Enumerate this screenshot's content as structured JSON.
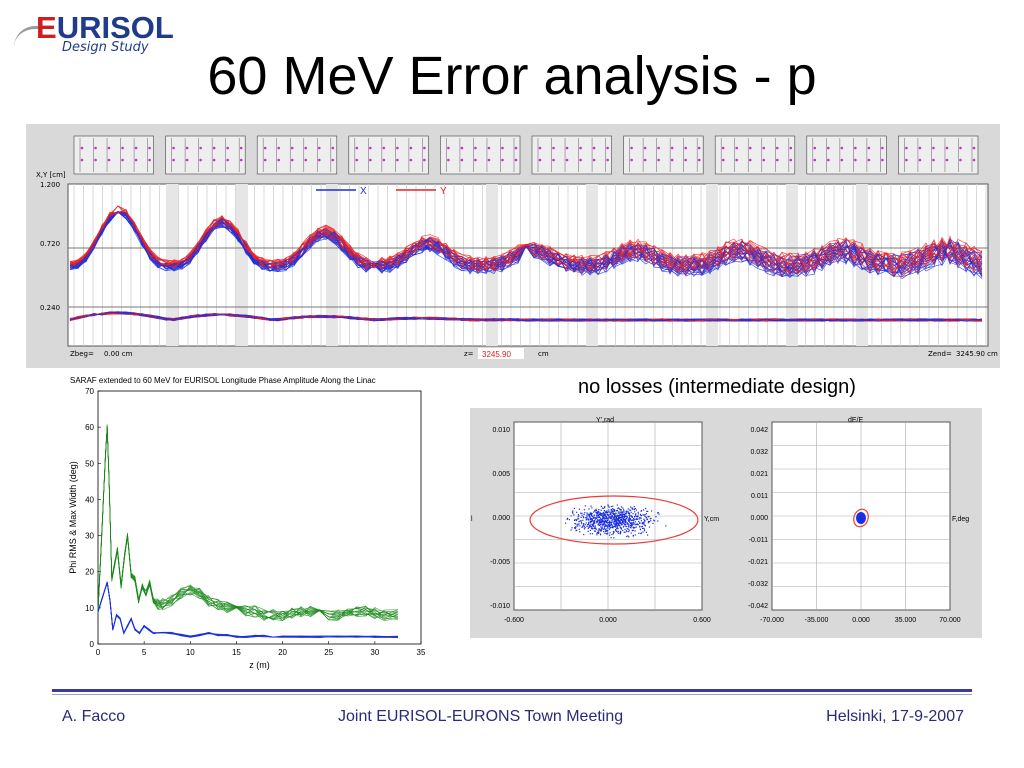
{
  "slide": {
    "logo_word": "EURISOL",
    "logo_first": "E",
    "logo_rest": "URISOL",
    "logo_sub": "Design Study",
    "title": "60 MeV Error analysis - p"
  },
  "top_panel": {
    "y_axis_label": "X,Y [cm]",
    "y_ticks": [
      "1.200",
      "0.720",
      "0.240"
    ],
    "legend_x": "X",
    "legend_y": "Y",
    "zbeg_label": "Zbeg=",
    "zbeg_value": "0.00 cm",
    "z_label": "z=",
    "z_value": "3245.90",
    "z_unit": "cm",
    "zend_label": "Zend=",
    "zend_value": "3245.90 cm",
    "colors": {
      "x": "#1a2fe0",
      "y": "#ee2020"
    }
  },
  "right_caption": "no losses (intermediate design)",
  "bottom_panel": {
    "left_plot": {
      "title": "Y',rad",
      "axis_right": "Y,cm",
      "axis_left_marker": "l",
      "y_ticks": [
        "0.010",
        "0.005",
        "0.000",
        "-0.005",
        "-0.010"
      ],
      "x_ticks": [
        "-0.600",
        "0.000",
        "0.600"
      ]
    },
    "right_plot": {
      "title": "dE/E",
      "axis_right": "F,deg",
      "y_ticks": [
        "0.042",
        "0.032",
        "0.021",
        "0.011",
        "0.000",
        "-0.011",
        "-0.021",
        "-0.032",
        "-0.042"
      ],
      "x_ticks": [
        "-70.000",
        "-35.000",
        "0.000",
        "35.000",
        "70.000"
      ]
    }
  },
  "chart_data": {
    "type": "line",
    "title": "SARAF  extended to 60 MeV for EURISOL Longitude Phase Amplitude Along the Linac",
    "xlabel": "z (m)",
    "ylabel": "Phi RMS & Max Width (deg)",
    "xlim": [
      0,
      35
    ],
    "ylim": [
      0,
      70
    ],
    "x_ticks": [
      0,
      5,
      10,
      15,
      20,
      25,
      30,
      35
    ],
    "y_ticks": [
      0,
      10,
      20,
      30,
      40,
      50,
      60,
      70
    ],
    "grid": false,
    "series": [
      {
        "color": "#1a8a1a",
        "x": [
          0,
          0.4,
          0.8,
          1.0,
          1.2,
          1.5,
          1.8,
          2.1,
          2.5,
          2.9,
          3.2,
          3.6,
          4.0,
          4.4,
          4.8,
          5.2,
          5.6,
          6.0,
          6.5,
          7,
          8,
          9,
          10,
          11,
          12,
          13,
          14,
          15,
          16,
          17,
          18,
          19,
          20,
          21,
          22,
          23,
          24,
          25,
          26,
          27,
          28,
          29,
          30,
          31,
          32.5
        ],
        "y": [
          9,
          30,
          52,
          60,
          45,
          18,
          22,
          26,
          16,
          25,
          30,
          19,
          18,
          12,
          16,
          14,
          17,
          12,
          11,
          11,
          12,
          14,
          15,
          14,
          12,
          11,
          10,
          10,
          9,
          9,
          8,
          8,
          8,
          8.5,
          9,
          9,
          8.5,
          8,
          8,
          8.5,
          9,
          9,
          8.5,
          8,
          8
        ]
      },
      {
        "color": "#1a2fe0",
        "x": [
          0,
          0.5,
          1.0,
          1.3,
          1.6,
          2.0,
          2.4,
          2.8,
          3.2,
          3.6,
          4.0,
          4.5,
          5.0,
          5.5,
          6.0,
          7,
          8,
          9,
          10,
          11,
          12,
          13,
          14,
          15,
          16,
          17,
          18,
          19,
          20,
          22,
          24,
          26,
          28,
          30,
          32.5
        ],
        "y": [
          9,
          13,
          17,
          12,
          4,
          8,
          7,
          3,
          5,
          7,
          4,
          3,
          5,
          4,
          3,
          3,
          3,
          2.5,
          2,
          2.5,
          3,
          2.5,
          2.5,
          2,
          2,
          2.2,
          2.2,
          2,
          2,
          2,
          2,
          2,
          2,
          2,
          2
        ]
      }
    ]
  },
  "footer": {
    "left": "A. Facco",
    "center": "Joint EURISOL-EURONS Town Meeting",
    "right": "Helsinki, 17-9-2007"
  }
}
